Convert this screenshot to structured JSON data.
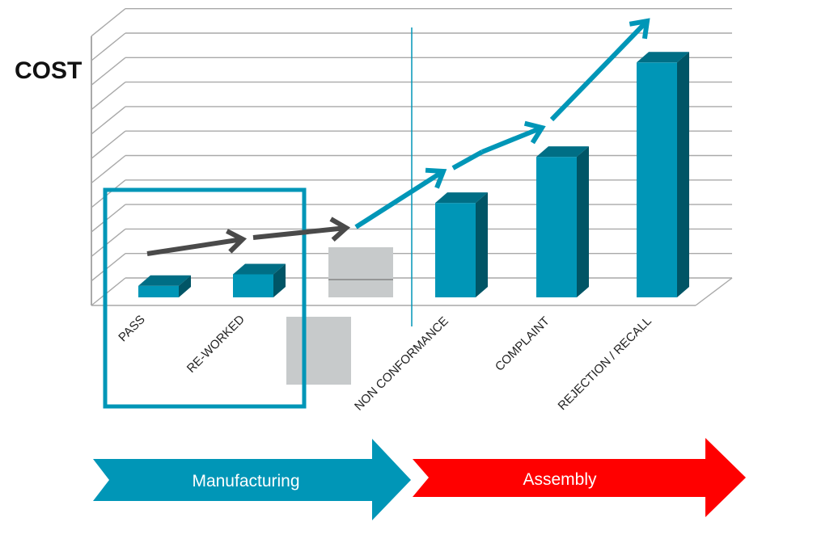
{
  "chart_data": {
    "type": "bar",
    "ylabel": "COST",
    "xlabel": "",
    "title": "",
    "categories": [
      "PASS",
      "RE-WORKED",
      "NON CONFORMANCE",
      "COMPLAINT",
      "REJECTION / RECALL"
    ],
    "values": [
      0.5,
      1.0,
      4.1,
      6.1,
      10.2
    ],
    "ylim": [
      0,
      11
    ],
    "grid": true,
    "legend": "none"
  },
  "phases": [
    {
      "label": "Manufacturing",
      "color": "#0096b7"
    },
    {
      "label": "Assembly",
      "color": "#ff0000"
    }
  ],
  "colors": {
    "bar_front": "#0096b7",
    "bar_top": "#006e85",
    "bar_side": "#005566",
    "trend_gray": "#4a4a4a",
    "trend_blue": "#0096b7",
    "highlight_box": "#0096b7",
    "placeholder": "#c7cacb",
    "grid": "#a9a9a9"
  }
}
